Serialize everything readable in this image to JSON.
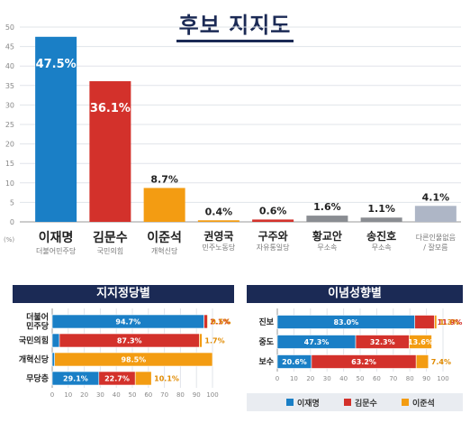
{
  "page": {
    "title": "후보 지지도",
    "unit_label": "(%)",
    "colors": {
      "navy": "#1b2a55",
      "blue": "#1a7fc6",
      "red": "#d3312b",
      "orange": "#f39c12",
      "gray": "#8a8d92",
      "lightgray": "#aeb6c6"
    }
  },
  "chart_data": [
    {
      "type": "bar",
      "title": "후보 지지도",
      "ylabel": "(%)",
      "ylim": [
        0,
        50
      ],
      "yticks": [
        0,
        5,
        10,
        15,
        20,
        25,
        30,
        35,
        40,
        45,
        50
      ],
      "categories": [
        "이재명",
        "김문수",
        "이준석",
        "권영국",
        "구주와",
        "황교안",
        "송진호",
        "다른인물없음 / 잘모름"
      ],
      "parties": [
        "더불어민주당",
        "국민의힘",
        "개혁신당",
        "민주노동당",
        "자유통일당",
        "무소속",
        "무소속",
        ""
      ],
      "values": [
        47.5,
        36.1,
        8.7,
        0.4,
        0.6,
        1.6,
        1.1,
        4.1
      ],
      "value_labels": [
        "47.5%",
        "36.1%",
        "8.7%",
        "0.4%",
        "0.6%",
        "1.6%",
        "1.1%",
        "4.1%"
      ],
      "colors": [
        "#1a7fc6",
        "#d3312b",
        "#f39c12",
        "#f39c12",
        "#d3312b",
        "#8a8d92",
        "#8a8d92",
        "#aeb6c6"
      ]
    },
    {
      "type": "bar",
      "orientation": "horizontal-stacked",
      "title": "지지정당별",
      "categories": [
        "더불어 민주당",
        "국민의힘",
        "개혁신당",
        "무당층"
      ],
      "xlim": [
        0,
        100
      ],
      "xticks": [
        0,
        10,
        20,
        30,
        40,
        50,
        60,
        70,
        80,
        90,
        100
      ],
      "series": [
        {
          "name": "이재명",
          "values": [
            94.7,
            4.5,
            1.5,
            29.1
          ],
          "labels": [
            "94.7%",
            "4.5%",
            "1.5%",
            "29.1%"
          ],
          "color": "#1a7fc6"
        },
        {
          "name": "김문수",
          "values": [
            2.1,
            87.3,
            0,
            22.7
          ],
          "labels": [
            "2.1%",
            "87.3%",
            "",
            "22.7%"
          ],
          "color": "#d3312b"
        },
        {
          "name": "이준석",
          "values": [
            0.5,
            1.7,
            98.5,
            10.1
          ],
          "labels": [
            "0.5%",
            "1.7%",
            "98.5%",
            "10.1%"
          ],
          "color": "#f39c12"
        }
      ]
    },
    {
      "type": "bar",
      "orientation": "horizontal-stacked",
      "title": "이념성향별",
      "categories": [
        "진보",
        "중도",
        "보수"
      ],
      "xlim": [
        0,
        100
      ],
      "xticks": [
        0,
        10,
        20,
        30,
        40,
        50,
        60,
        70,
        80,
        90,
        100
      ],
      "series": [
        {
          "name": "이재명",
          "values": [
            83.0,
            47.3,
            20.6
          ],
          "labels": [
            "83.0%",
            "47.3%",
            "20.6%"
          ],
          "color": "#1a7fc6"
        },
        {
          "name": "김문수",
          "values": [
            11.9,
            32.3,
            63.2
          ],
          "labels": [
            "11.9%",
            "32.3%",
            "63.2%"
          ],
          "color": "#d3312b"
        },
        {
          "name": "이준석",
          "values": [
            1.3,
            13.6,
            7.4
          ],
          "labels": [
            "1.3%",
            "13.6%",
            "7.4%"
          ],
          "color": "#f39c12"
        }
      ],
      "legend": [
        "이재명",
        "김문수",
        "이준석"
      ],
      "legend_position": "bottom"
    }
  ]
}
